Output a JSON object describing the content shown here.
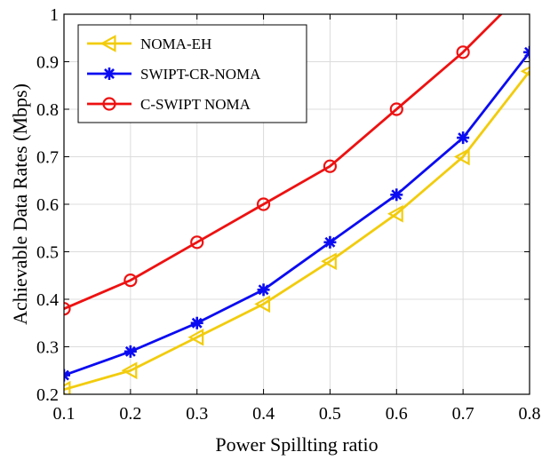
{
  "chart_data": {
    "type": "line",
    "xlabel": "Power Spillting ratio",
    "ylabel": "Achievable Data Rates (Mbps)",
    "xlim": [
      0.1,
      0.8
    ],
    "ylim": [
      0.2,
      1.0
    ],
    "xticks": [
      0.1,
      0.2,
      0.3,
      0.4,
      0.5,
      0.6,
      0.7,
      0.8
    ],
    "yticks": [
      0.2,
      0.3,
      0.4,
      0.5,
      0.6,
      0.7,
      0.8,
      0.9,
      1.0
    ],
    "xtick_labels": [
      "0.1",
      "0.2",
      "0.3",
      "0.4",
      "0.5",
      "0.6",
      "0.7",
      "0.8"
    ],
    "ytick_labels": [
      "0.2",
      "0.3",
      "0.4",
      "0.5",
      "0.6",
      "0.7",
      "0.8",
      "0.9",
      "1"
    ],
    "grid": true,
    "legend_position": "top-left",
    "x": [
      0.1,
      0.2,
      0.3,
      0.4,
      0.5,
      0.6,
      0.7,
      0.8
    ],
    "series": [
      {
        "name": "NOMA-EH",
        "color": "#f2cc0c",
        "marker": "triangle-left",
        "values": [
          0.21,
          0.25,
          0.32,
          0.39,
          0.48,
          0.58,
          0.7,
          0.88
        ]
      },
      {
        "name": "SWIPT-CR-NOMA",
        "color": "#0b0bf2",
        "marker": "asterisk",
        "values": [
          0.24,
          0.29,
          0.35,
          0.42,
          0.52,
          0.62,
          0.74,
          0.92
        ]
      },
      {
        "name": "C-SWIPT NOMA",
        "color": "#ee1111",
        "marker": "circle",
        "values": [
          0.38,
          0.44,
          0.52,
          0.6,
          0.68,
          0.8,
          0.92,
          1.06
        ]
      }
    ]
  }
}
